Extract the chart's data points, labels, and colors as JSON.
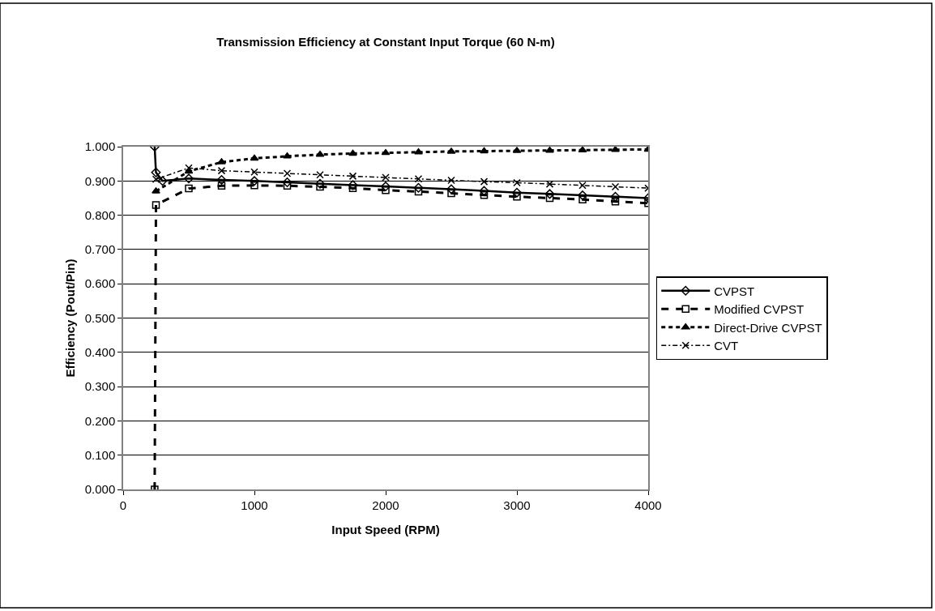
{
  "chart_data": {
    "type": "line",
    "title": "Transmission Efficiency at Constant Input Torque (60 N-m)",
    "xlabel": "Input Speed (RPM)",
    "ylabel": "Efficiency (Pout/Pin)",
    "xlim": [
      0,
      4000
    ],
    "xticks": [
      0,
      1000,
      2000,
      3000,
      4000
    ],
    "ylim": [
      0,
      1
    ],
    "yticks": [
      {
        "value": 0,
        "label": "0.000"
      },
      {
        "value": 0.1,
        "label": "0.100"
      },
      {
        "value": 0.2,
        "label": "0.200"
      },
      {
        "value": 0.3,
        "label": "0.300"
      },
      {
        "value": 0.4,
        "label": "0.400"
      },
      {
        "value": 0.5,
        "label": "0.500"
      },
      {
        "value": 0.6,
        "label": "0.600"
      },
      {
        "value": 0.7,
        "label": "0.700"
      },
      {
        "value": 0.8,
        "label": "0.800"
      },
      {
        "value": 0.9,
        "label": "0.900"
      },
      {
        "value": 1,
        "label": "1.000"
      }
    ],
    "grid": "y",
    "legend": "right",
    "series": [
      {
        "name": "CVPST",
        "color": "#000000",
        "marker": "diamond",
        "line_style": "solid",
        "x": [
          240,
          250,
          300,
          500,
          750,
          1000,
          1250,
          1500,
          1750,
          2000,
          2250,
          2500,
          2750,
          3000,
          3250,
          3500,
          3750,
          4000
        ],
        "values": [
          1.0,
          0.925,
          0.9,
          0.907,
          0.903,
          0.9,
          0.896,
          0.892,
          0.888,
          0.884,
          0.88,
          0.876,
          0.871,
          0.866,
          0.862,
          0.858,
          0.854,
          0.85
        ]
      },
      {
        "name": "Modified CVPST",
        "color": "#000000",
        "marker": "square",
        "line_style": "dashed",
        "x": [
          240,
          250,
          500,
          750,
          1000,
          1250,
          1500,
          1750,
          2000,
          2250,
          2500,
          2750,
          3000,
          3250,
          3500,
          3750,
          4000
        ],
        "values": [
          0.0,
          0.83,
          0.878,
          0.886,
          0.887,
          0.886,
          0.883,
          0.879,
          0.873,
          0.869,
          0.864,
          0.859,
          0.854,
          0.85,
          0.846,
          0.84,
          0.835
        ]
      },
      {
        "name": "Direct-Drive CVPST",
        "color": "#000000",
        "marker": "triangle",
        "line_style": "dotted",
        "x": [
          250,
          500,
          750,
          1000,
          1250,
          1500,
          1750,
          2000,
          2250,
          2500,
          2750,
          3000,
          3250,
          3500,
          3750,
          4000
        ],
        "values": [
          0.87,
          0.928,
          0.955,
          0.966,
          0.972,
          0.977,
          0.98,
          0.982,
          0.984,
          0.986,
          0.987,
          0.988,
          0.989,
          0.99,
          0.991,
          0.992
        ]
      },
      {
        "name": "CVT",
        "color": "#000000",
        "marker": "cross",
        "line_style": "dashdot",
        "x": [
          250,
          500,
          750,
          1000,
          1250,
          1500,
          1750,
          2000,
          2250,
          2500,
          2750,
          3000,
          3250,
          3500,
          3750,
          4000
        ],
        "values": [
          0.905,
          0.938,
          0.93,
          0.926,
          0.922,
          0.918,
          0.914,
          0.91,
          0.906,
          0.902,
          0.898,
          0.895,
          0.891,
          0.887,
          0.883,
          0.879
        ]
      }
    ]
  }
}
